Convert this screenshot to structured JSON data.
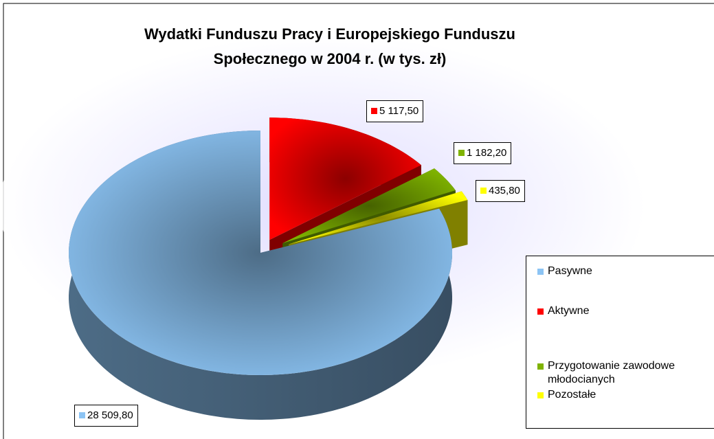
{
  "chart_data": {
    "type": "pie3d",
    "title": "Wydatki Funduszu Pracy i Europejskiego Funduszu Społecznego w 2004 r. (w tys. zł)",
    "categories": [
      "Pasywne",
      "Aktywne",
      "Przygotowanie zawodowe młodocianych",
      "Pozostałe"
    ],
    "values": [
      28509.8,
      5117.5,
      1182.2,
      435.8
    ],
    "value_labels": [
      "28 509,80",
      "5 117,50",
      "1 182,20",
      "435,80"
    ],
    "colors": [
      "#8cc4f4",
      "#ff0000",
      "#7fb300",
      "#ffff00"
    ],
    "legend": "right"
  }
}
